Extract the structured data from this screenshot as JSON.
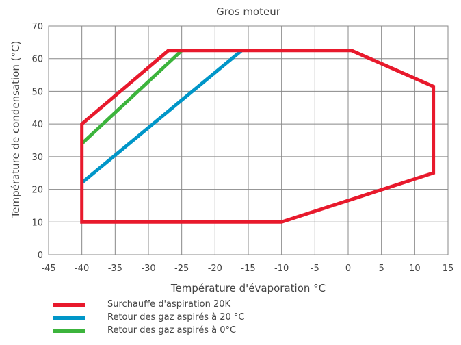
{
  "chart_data": {
    "type": "line",
    "title": "Gros moteur",
    "xlabel": "Température d'évaporation °C",
    "ylabel": "Température de condensation (°C)",
    "xlim": [
      -45,
      15
    ],
    "ylim": [
      0,
      70
    ],
    "xticks": [
      -45,
      -40,
      -35,
      -30,
      -25,
      -20,
      -15,
      -10,
      -5,
      0,
      5,
      10,
      15
    ],
    "yticks": [
      0,
      10,
      20,
      30,
      40,
      50,
      60,
      70
    ],
    "grid": true,
    "legend_position": "bottom-left",
    "series": [
      {
        "name": "Surchauffe d'aspiration 20K",
        "color": "#e8192c",
        "closed": true,
        "points": [
          [
            -40,
            10
          ],
          [
            -10,
            10
          ],
          [
            12.8,
            25
          ],
          [
            12.8,
            51.5
          ],
          [
            0.5,
            62.5
          ],
          [
            -27,
            62.5
          ],
          [
            -40,
            40
          ]
        ]
      },
      {
        "name": "Retour des gaz aspirés à 20 °C",
        "color": "#0096c8",
        "closed": false,
        "points": [
          [
            -40,
            22
          ],
          [
            -16,
            62.5
          ]
        ]
      },
      {
        "name": "Retour des gaz aspirés à 0°C",
        "color": "#3cb43c",
        "closed": false,
        "points": [
          [
            -40,
            34
          ],
          [
            -25,
            62.5
          ]
        ]
      }
    ]
  }
}
